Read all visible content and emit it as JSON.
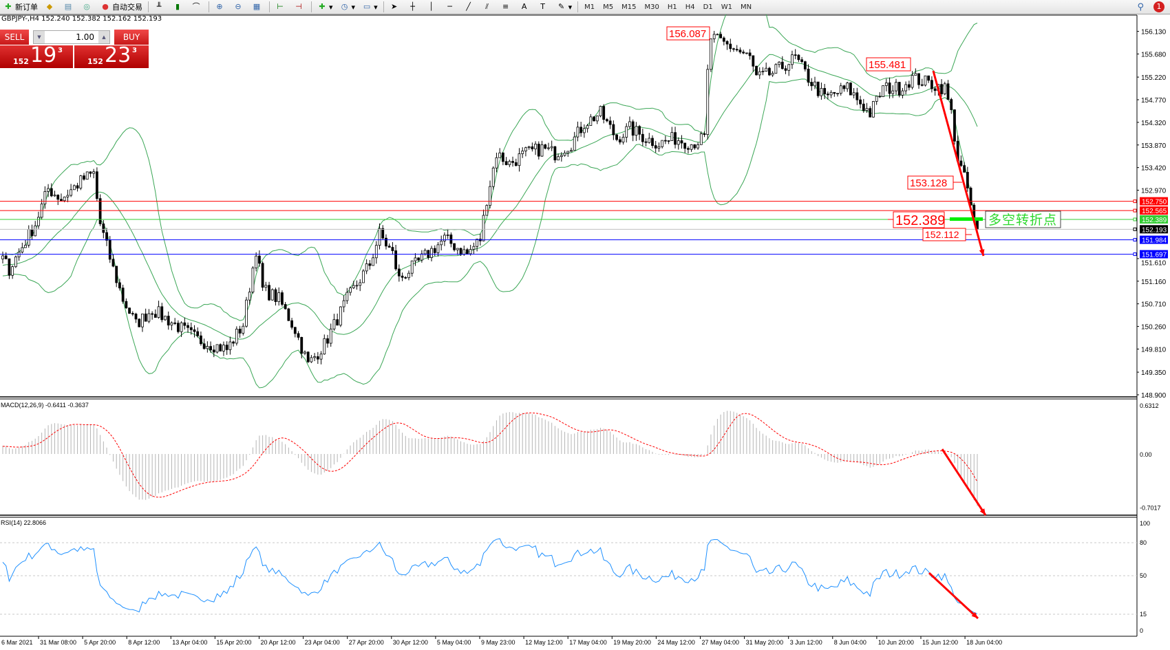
{
  "toolbar": {
    "new_order": "新订单",
    "auto_trading": "自动交易",
    "timeframes": [
      "M1",
      "M5",
      "M15",
      "M30",
      "H1",
      "H4",
      "D1",
      "W1",
      "MN"
    ],
    "notification_count": "1",
    "icons": [
      "new-order-icon",
      "market-watch-icon",
      "data-window-icon",
      "signals-icon",
      "auto-trading-icon",
      "bar-chart-icon",
      "candlestick-icon",
      "line-chart-icon",
      "zoom-in-icon",
      "zoom-out-icon",
      "tile-windows-icon",
      "chart-shift-icon",
      "autoscroll-icon",
      "indicators-icon",
      "periods-icon",
      "templates-icon",
      "cursor-icon",
      "crosshair-icon",
      "vertical-line-icon",
      "horizontal-line-icon",
      "trendline-icon",
      "equidistant-channel-icon",
      "fibonacci-icon",
      "text-icon",
      "text-label-icon",
      "arrows-icon"
    ]
  },
  "symbol_info": "GBPJPY-,H4  152.240 152.382 152.162 152.193",
  "trade_panel": {
    "sell_label": "SELL",
    "buy_label": "BUY",
    "lot": "1.00",
    "sell": {
      "prefix": "152",
      "big": "19",
      "sup": "3"
    },
    "buy": {
      "prefix": "152",
      "big": "23",
      "sup": "3"
    }
  },
  "price_axis": [
    "156.130",
    "155.680",
    "155.220",
    "154.770",
    "154.320",
    "153.870",
    "153.420",
    "152.970",
    "151.610",
    "151.160",
    "150.710",
    "150.260",
    "149.810",
    "149.350",
    "148.900"
  ],
  "hlines": [
    {
      "price": 152.75,
      "label": "152.750",
      "color": "#ff0000"
    },
    {
      "price": 152.565,
      "label": "152.565",
      "color": "#ff0000"
    },
    {
      "price": 152.389,
      "label": "152.389",
      "color": "#32cd32"
    },
    {
      "price": 152.193,
      "label": "152.193",
      "color": "#000000",
      "line": "#c0c0c0"
    },
    {
      "price": 151.984,
      "label": "151.984",
      "color": "#0000ff"
    },
    {
      "price": 151.697,
      "label": "151.697",
      "color": "#0000ff"
    }
  ],
  "annotations": {
    "high": "156.087",
    "second_high": "155.481",
    "level_153": "153.128",
    "pivot": "152.389",
    "low": "152.112",
    "pivot_text": "多空转折点"
  },
  "macd": {
    "label": "MACD(12,26,9) -0.6411 -0.3637",
    "axis": [
      "0.6312",
      "0.00",
      "-0.7017"
    ]
  },
  "rsi": {
    "label": "RSI(14) 22.8066",
    "axis": [
      "100",
      "80",
      "50",
      "15",
      "0"
    ]
  },
  "date_axis": [
    "6 Mar 2021",
    "31 Mar 08:00",
    "5 Apr 20:00",
    "8 Apr 12:00",
    "13 Apr 04:00",
    "15 Apr 20:00",
    "20 Apr 12:00",
    "23 Apr 04:00",
    "27 Apr 20:00",
    "30 Apr 12:00",
    "5 May 04:00",
    "9 May 23:00",
    "12 May 12:00",
    "17 May 04:00",
    "19 May 20:00",
    "24 May 12:00",
    "27 May 04:00",
    "31 May 20:00",
    "3 Jun 12:00",
    "8 Jun 04:00",
    "10 Jun 20:00",
    "15 Jun 12:00",
    "18 Jun 04:00"
  ],
  "colors": {
    "bands": "#3aa655",
    "signal": "#ff0000",
    "rsi": "#1e90ff",
    "arrow": "#ff0000"
  },
  "chart_data": {
    "type": "candlestick",
    "timeframe": "H4",
    "symbol": "GBPJPY",
    "ylim": [
      148.9,
      156.13
    ],
    "close_path": [
      [
        -40,
        151.0
      ],
      [
        0,
        151.6
      ],
      [
        2,
        151.4
      ],
      [
        10,
        152.3
      ],
      [
        14,
        153.0
      ],
      [
        18,
        152.8
      ],
      [
        25,
        153.2
      ],
      [
        28,
        153.3
      ],
      [
        30,
        152.3
      ],
      [
        34,
        151.4
      ],
      [
        37,
        150.8
      ],
      [
        41,
        150.3
      ],
      [
        46,
        150.6
      ],
      [
        53,
        150.3
      ],
      [
        60,
        150.0
      ],
      [
        69,
        149.8
      ],
      [
        74,
        150.3
      ],
      [
        78,
        151.8
      ],
      [
        80,
        151.0
      ],
      [
        85,
        150.8
      ],
      [
        90,
        150.2
      ],
      [
        94,
        149.5
      ],
      [
        99,
        149.9
      ],
      [
        106,
        150.8
      ],
      [
        113,
        151.5
      ],
      [
        116,
        152.1
      ],
      [
        120,
        151.7
      ],
      [
        122,
        151.2
      ],
      [
        129,
        151.6
      ],
      [
        136,
        152.0
      ],
      [
        143,
        151.7
      ],
      [
        147,
        152.0
      ],
      [
        149,
        152.8
      ],
      [
        152,
        153.7
      ],
      [
        156,
        153.5
      ],
      [
        161,
        153.7
      ],
      [
        166,
        153.8
      ],
      [
        170,
        153.7
      ],
      [
        175,
        153.9
      ],
      [
        179,
        154.3
      ],
      [
        184,
        154.5
      ],
      [
        189,
        154.0
      ],
      [
        193,
        154.2
      ],
      [
        198,
        154.0
      ],
      [
        202,
        153.9
      ],
      [
        207,
        154.0
      ],
      [
        212,
        153.9
      ],
      [
        216,
        154.0
      ],
      [
        217,
        155.3
      ],
      [
        218,
        156.0
      ],
      [
        225,
        155.8
      ],
      [
        230,
        155.6
      ],
      [
        232,
        155.2
      ],
      [
        237,
        155.3
      ],
      [
        244,
        155.6
      ],
      [
        248,
        155.2
      ],
      [
        253,
        154.8
      ],
      [
        260,
        155.0
      ],
      [
        267,
        154.5
      ],
      [
        271,
        155.0
      ],
      [
        276,
        155.0
      ],
      [
        280,
        155.2
      ],
      [
        285,
        155.1
      ],
      [
        290,
        155.0
      ],
      [
        292,
        154.5
      ],
      [
        294,
        153.6
      ],
      [
        297,
        153.0
      ],
      [
        299,
        152.3
      ],
      [
        300,
        152.19
      ]
    ],
    "indicators": [
      "Bollinger Bands(20,2)",
      "MACD(12,26,9)",
      "RSI(14)"
    ],
    "rsi_levels": [
      80,
      50,
      15
    ]
  }
}
